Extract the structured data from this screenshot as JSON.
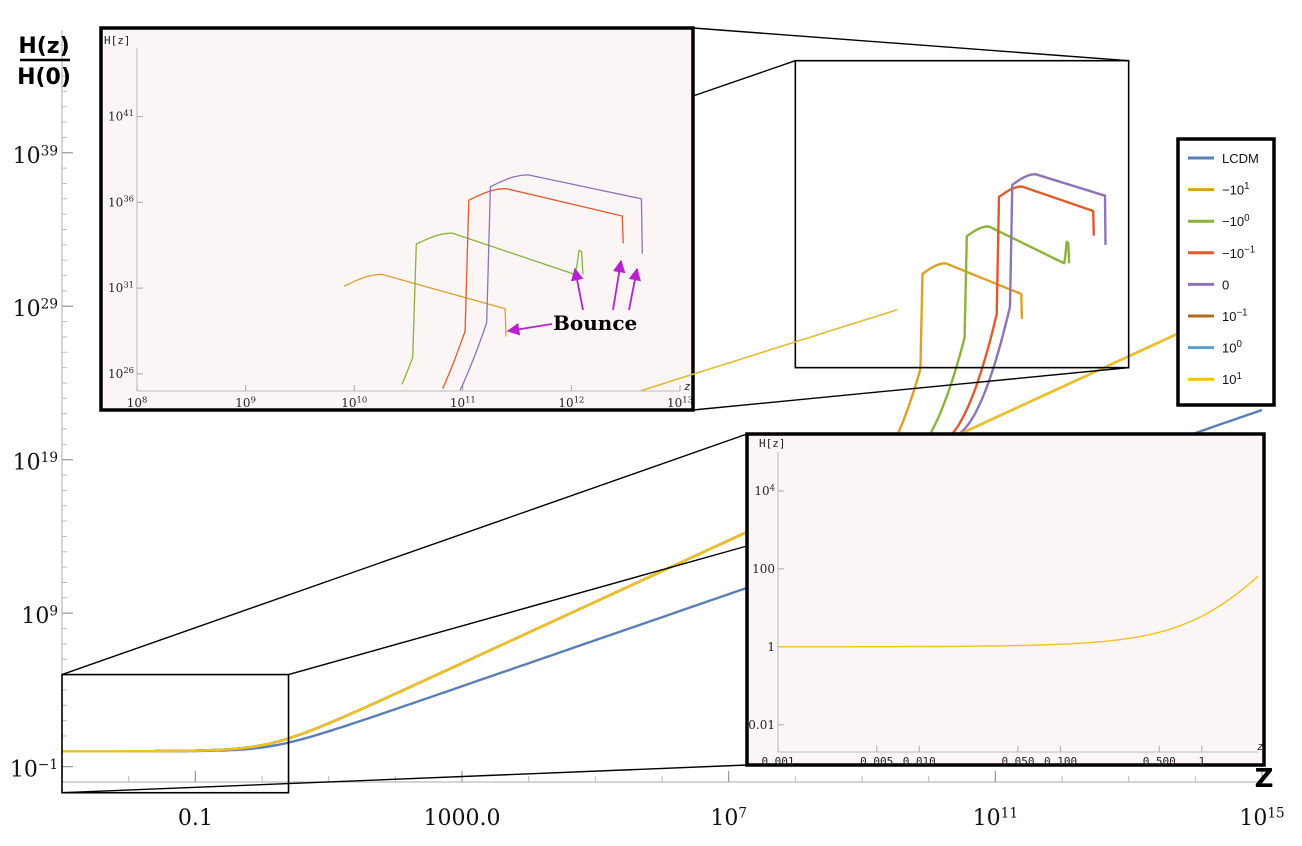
{
  "chart_data": {
    "type": "line",
    "xscale": "log",
    "yscale": "log",
    "xlim": [
      0.001,
      1000000000000000.0
    ],
    "ylim": [
      0.01,
      1e+47
    ],
    "xlabel": "Z",
    "ylabel_num": "H(z)",
    "ylabel_den": "H(0)",
    "x_ticks": [
      {
        "v": 0.1,
        "label": "0.1"
      },
      {
        "v": 1000,
        "label": "1000.0"
      },
      {
        "v": 10000000.0,
        "label": "10",
        "exp": "7"
      },
      {
        "v": 100000000000.0,
        "label": "10",
        "exp": "11"
      },
      {
        "v": 1000000000000000.0,
        "label": "10",
        "exp": "15"
      }
    ],
    "y_ticks": [
      {
        "v": 0.1,
        "label": "10",
        "exp": "−1"
      },
      {
        "v": 1000000000.0,
        "label": "10",
        "exp": "9"
      },
      {
        "v": 1e+19,
        "label": "10",
        "exp": "19"
      },
      {
        "v": 1e+29,
        "label": "10",
        "exp": "29"
      },
      {
        "v": 1e+39,
        "label": "10",
        "exp": "39"
      }
    ],
    "legend": {
      "placement": "right",
      "entries": [
        {
          "name": "LCDM",
          "exp": "",
          "color": "#5a7fb5"
        },
        {
          "name": "−10",
          "exp": "1",
          "color": "#d9a02a"
        },
        {
          "name": "−10",
          "exp": "0",
          "color": "#8ab33b"
        },
        {
          "name": "−10",
          "exp": "−1",
          "color": "#e05b2c"
        },
        {
          "name": "0",
          "exp": "",
          "color": "#8d74b5"
        },
        {
          "name": "10",
          "exp": "−1",
          "color": "#b8691f"
        },
        {
          "name": "10",
          "exp": "0",
          "color": "#5aa0cf"
        },
        {
          "name": "10",
          "exp": "1",
          "color": "#f1c21d"
        }
      ]
    },
    "series": [
      {
        "name": "LCDM",
        "color": "#5a7fb5",
        "omega_m": 0.3,
        "slope": 1.5,
        "bounce": null
      },
      {
        "name": "−10¹",
        "color": "#d9a02a",
        "omega_m": 0.3,
        "slope": 2.0,
        "bounce": {
          "z_peak": 18000000000.0,
          "h_peak": 6.3e+31,
          "z_end": 250000000000.0,
          "h_mid": 6.3e+29,
          "h_bottom": 1.5e+28,
          "hook": false
        }
      },
      {
        "name": "−10⁰",
        "color": "#8ab33b",
        "omega_m": 0.3,
        "slope": 2.0,
        "bounce": {
          "z_peak": 80000000000.0,
          "h_peak": 1.6e+34,
          "z_end": 1100000000000.0,
          "h_mid": 6.3e+31,
          "h_bottom": 6.3e+31,
          "hook": true,
          "hook_top": 1.6e+33
        }
      },
      {
        "name": "−10⁻¹",
        "color": "#e05b2c",
        "omega_m": 0.3,
        "slope": 2.0,
        "bounce": {
          "z_peak": 250000000000.0,
          "h_peak": 6.3e+36,
          "z_end": 3000000000000.0,
          "h_mid": 1.6e+35,
          "h_bottom": 4e+33,
          "hook": false
        }
      },
      {
        "name": "0",
        "color": "#8d74b5",
        "omega_m": 0.3,
        "slope": 2.0,
        "bounce": {
          "z_peak": 400000000000.0,
          "h_peak": 4e+37,
          "z_end": 4500000000000.0,
          "h_mid": 1.6e+36,
          "h_bottom": 1e+33,
          "hook": false
        }
      },
      {
        "name": "10⁻¹",
        "color": "#b8691f",
        "omega_m": 0.3,
        "slope": 2.0,
        "bounce": null
      },
      {
        "name": "10⁰",
        "color": "#5aa0cf",
        "omega_m": 0.3,
        "slope": 2.0,
        "bounce": null
      },
      {
        "name": "10¹",
        "color": "#f1c21d",
        "omega_m": 0.3,
        "slope": 2.0,
        "bounce": null
      }
    ],
    "insets": [
      {
        "id": "high-z",
        "ylabel": "H[z]",
        "xlabel": "z",
        "xlim": [
          100000000.0,
          10000000000000.0
        ],
        "ylim": [
          1e+25,
          1e+45
        ],
        "x_ticks": [
          {
            "v": 100000000.0,
            "label": "10",
            "exp": "8"
          },
          {
            "v": 1000000000.0,
            "label": "10",
            "exp": "9"
          },
          {
            "v": 10000000000.0,
            "label": "10",
            "exp": "10"
          },
          {
            "v": 100000000000.0,
            "label": "10",
            "exp": "11"
          },
          {
            "v": 1000000000000.0,
            "label": "10",
            "exp": "12"
          },
          {
            "v": 10000000000000.0,
            "label": "10",
            "exp": "13"
          }
        ],
        "y_ticks": [
          {
            "v": 1e+26,
            "label": "10",
            "exp": "26"
          },
          {
            "v": 1e+31,
            "label": "10",
            "exp": "31"
          },
          {
            "v": 1e+36,
            "label": "10",
            "exp": "36"
          },
          {
            "v": 1e+41,
            "label": "10",
            "exp": "41"
          }
        ],
        "annotation": "Bounce"
      },
      {
        "id": "low-z",
        "ylabel": "H[z]",
        "xlabel": "z",
        "xlim": [
          0.001,
          2.5
        ],
        "ylim": [
          0.002,
          100000
        ],
        "x_ticks": [
          {
            "v": 0.001,
            "label": "0.001"
          },
          {
            "v": 0.005,
            "label": "0.005"
          },
          {
            "v": 0.01,
            "label": "0.010"
          },
          {
            "v": 0.05,
            "label": "0.050"
          },
          {
            "v": 0.1,
            "label": "0.100"
          },
          {
            "v": 0.5,
            "label": "0.500"
          },
          {
            "v": 1,
            "label": "1"
          }
        ],
        "y_ticks": [
          {
            "v": 0.01,
            "label": "0.01"
          },
          {
            "v": 1,
            "label": "1"
          },
          {
            "v": 100,
            "label": "100"
          },
          {
            "v": 10000,
            "label": "10",
            "exp": "4"
          }
        ]
      }
    ]
  }
}
